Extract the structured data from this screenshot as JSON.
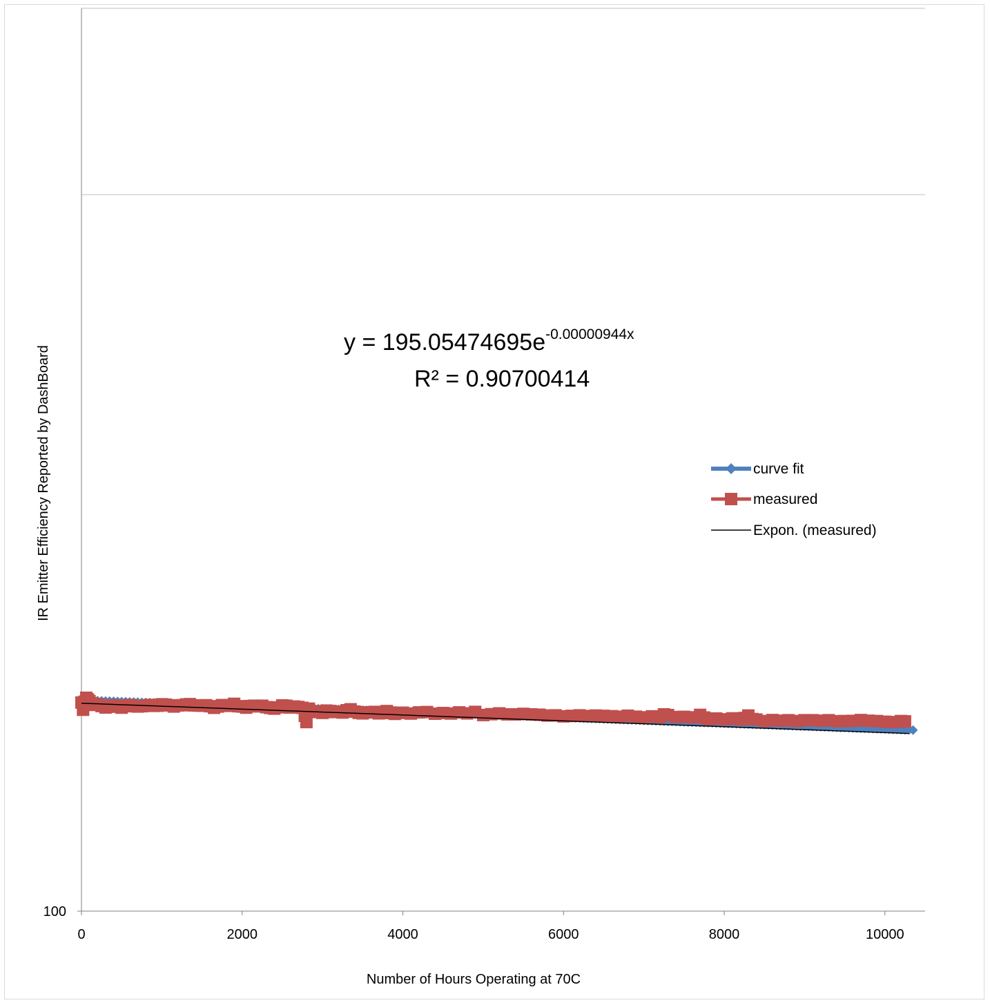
{
  "chart_data": {
    "type": "scatter",
    "xlabel": "Number of Hours Operating at 70C",
    "ylabel": "IR Emitter Efficiency Reported by DashBoard",
    "x_ticks": [
      "0",
      "2000",
      "4000",
      "6000",
      "8000",
      "10000"
    ],
    "y_ticks": [
      "100"
    ],
    "xlim": [
      0,
      10500
    ],
    "y_scale": "log",
    "ylim": [
      100,
      1000
    ],
    "gridlines": "horizontal, major at 1000",
    "legend_position": "right",
    "trendline": {
      "name": "Expon. (measured)",
      "equation_prefix": "y = 195.05474695e",
      "equation_exponent": "-0.00000944x",
      "r2_label": "R² = 0.90700414",
      "a": 195.05474695,
      "b": -9.44e-06
    },
    "series": [
      {
        "name": "curve fit",
        "color": "#4f81bd",
        "marker": "diamond",
        "fit_a": 197.0,
        "fit_b": -9.3e-06,
        "x_range": [
          0,
          10350
        ]
      },
      {
        "name": "measured",
        "color": "#c0504d",
        "marker": "square",
        "points": [
          [
            0,
            195.5
          ],
          [
            20,
            191
          ],
          [
            40,
            196
          ],
          [
            60,
            198.5
          ],
          [
            80,
            197.5
          ],
          [
            100,
            196.4
          ],
          [
            130,
            195
          ],
          [
            160,
            194
          ],
          [
            200,
            194.5
          ],
          [
            250,
            193.3
          ],
          [
            300,
            192.4
          ],
          [
            350,
            193.5
          ],
          [
            400,
            193.8
          ],
          [
            450,
            192.9
          ],
          [
            500,
            192.3
          ],
          [
            550,
            193.4
          ],
          [
            600,
            194
          ],
          [
            650,
            193.2
          ],
          [
            700,
            193
          ],
          [
            750,
            193.2
          ],
          [
            800,
            193.6
          ],
          [
            850,
            194
          ],
          [
            900,
            193.4
          ],
          [
            950,
            193.5
          ],
          [
            1000,
            194.4
          ],
          [
            1050,
            194.2
          ],
          [
            1100,
            193.7
          ],
          [
            1150,
            193
          ],
          [
            1200,
            193.7
          ],
          [
            1250,
            193.8
          ],
          [
            1300,
            194.3
          ],
          [
            1350,
            194.5
          ],
          [
            1400,
            193.7
          ],
          [
            1450,
            193.6
          ],
          [
            1500,
            193.5
          ],
          [
            1550,
            193.8
          ],
          [
            1600,
            193.2
          ],
          [
            1650,
            192.2
          ],
          [
            1700,
            193
          ],
          [
            1750,
            193.9
          ],
          [
            1800,
            193.4
          ],
          [
            1850,
            193.6
          ],
          [
            1900,
            194.7
          ],
          [
            1950,
            193.2
          ],
          [
            2000,
            193
          ],
          [
            2050,
            192.3
          ],
          [
            2100,
            193.3
          ],
          [
            2150,
            193.5
          ],
          [
            2200,
            193.1
          ],
          [
            2250,
            193.5
          ],
          [
            2300,
            192.6
          ],
          [
            2350,
            192.1
          ],
          [
            2400,
            191.7
          ],
          [
            2450,
            192.5
          ],
          [
            2500,
            193.7
          ],
          [
            2550,
            193.5
          ],
          [
            2600,
            192.4
          ],
          [
            2650,
            193
          ],
          [
            2700,
            192.7
          ],
          [
            2750,
            192.2
          ],
          [
            2780,
            187.3
          ],
          [
            2800,
            183.6
          ],
          [
            2830,
            191.7
          ],
          [
            2860,
            190.2
          ],
          [
            2900,
            189.6
          ],
          [
            2950,
            190
          ],
          [
            3000,
            189.1
          ],
          [
            3050,
            190.5
          ],
          [
            3100,
            190.2
          ],
          [
            3150,
            189.6
          ],
          [
            3200,
            189.9
          ],
          [
            3250,
            189.3
          ],
          [
            3300,
            190.7
          ],
          [
            3350,
            191.3
          ],
          [
            3400,
            189.9
          ],
          [
            3450,
            189.1
          ],
          [
            3500,
            188.8
          ],
          [
            3550,
            189.5
          ],
          [
            3600,
            189.4
          ],
          [
            3650,
            189.7
          ],
          [
            3700,
            188.8
          ],
          [
            3750,
            189
          ],
          [
            3800,
            190.2
          ],
          [
            3850,
            189.3
          ],
          [
            3900,
            188.5
          ],
          [
            3950,
            189.1
          ],
          [
            4000,
            189.2
          ],
          [
            4100,
            188.7
          ],
          [
            4200,
            189.4
          ],
          [
            4300,
            189.6
          ],
          [
            4400,
            188.6
          ],
          [
            4500,
            189
          ],
          [
            4600,
            188.7
          ],
          [
            4700,
            189.4
          ],
          [
            4800,
            188.8
          ],
          [
            4900,
            189.7
          ],
          [
            5000,
            187.8
          ],
          [
            5100,
            188.3
          ],
          [
            5200,
            188.8
          ],
          [
            5300,
            188.2
          ],
          [
            5400,
            188.2
          ],
          [
            5500,
            188.5
          ],
          [
            5600,
            188.2
          ],
          [
            5700,
            188
          ],
          [
            5800,
            187.5
          ],
          [
            5900,
            187.6
          ],
          [
            6000,
            187
          ],
          [
            6100,
            187.3
          ],
          [
            6200,
            187.6
          ],
          [
            6300,
            187.2
          ],
          [
            6400,
            187.5
          ],
          [
            6500,
            187.3
          ],
          [
            6600,
            187.1
          ],
          [
            6700,
            186.8
          ],
          [
            6800,
            187.4
          ],
          [
            6900,
            186.8
          ],
          [
            7000,
            186.4
          ],
          [
            7100,
            187
          ],
          [
            7200,
            186.4
          ],
          [
            7250,
            188.2
          ],
          [
            7300,
            187.8
          ],
          [
            7400,
            186.6
          ],
          [
            7500,
            186.7
          ],
          [
            7600,
            186.4
          ],
          [
            7700,
            187.9
          ],
          [
            7750,
            186.3
          ],
          [
            7800,
            185.3
          ],
          [
            7900,
            185.7
          ],
          [
            8000,
            185.2
          ],
          [
            8100,
            185.8
          ],
          [
            8200,
            185.1
          ],
          [
            8250,
            186
          ],
          [
            8300,
            187.5
          ],
          [
            8350,
            185.4
          ],
          [
            8400,
            185.1
          ],
          [
            8500,
            184.2
          ],
          [
            8600,
            184.8
          ],
          [
            8700,
            184.4
          ],
          [
            8800,
            184.7
          ],
          [
            8900,
            184.2
          ],
          [
            9000,
            184.7
          ],
          [
            9100,
            184.7
          ],
          [
            9200,
            184.4
          ],
          [
            9300,
            184.7
          ],
          [
            9400,
            184.1
          ],
          [
            9500,
            184.2
          ],
          [
            9600,
            184.3
          ],
          [
            9700,
            184.8
          ],
          [
            9800,
            184.4
          ],
          [
            9900,
            184.2
          ],
          [
            10000,
            183.8
          ],
          [
            10100,
            183.6
          ],
          [
            10200,
            184.2
          ],
          [
            10250,
            184
          ]
        ]
      }
    ]
  }
}
